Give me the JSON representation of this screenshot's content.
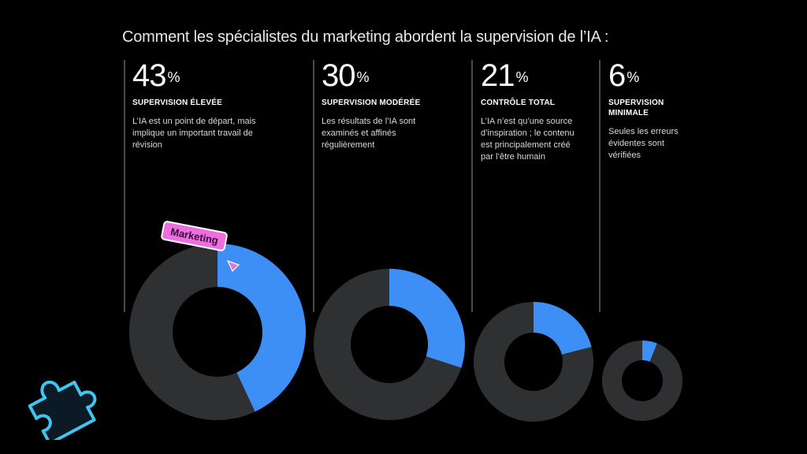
{
  "title": "Comment les spécialistes du marketing abordent la supervision de l’IA :",
  "tag": {
    "label": "Marketing"
  },
  "icons": {
    "puzzle": "puzzle-piece-icon",
    "arrow": "pointer-arrow-icon"
  },
  "colors": {
    "accent": "#3d8ef5",
    "remainder": "#2e3032",
    "tag": "#ec6ee0",
    "puzzle": "#3fc6f0"
  },
  "chart_data": {
    "type": "pie",
    "title": "Comment les spécialistes du marketing abordent la supervision de l’IA :",
    "unit": "%",
    "categories": [
      "SUPERVISION ÉLEVÉE",
      "SUPERVISION MODÉRÉE",
      "CONTRÔLE TOTAL",
      "SUPERVISION MINIMALE"
    ],
    "values": [
      43,
      30,
      21,
      6
    ],
    "descriptions": [
      "L’IA est un point de départ, mais implique un important travail de révision",
      "Les résultats de l’IA sont examinés et affinés régulièrement",
      "L’IA n’est qu’une source d’inspiration ; le contenu est principalement créé par l’être humain",
      "Seules les erreurs évidentes sont vérifiées"
    ],
    "percent_sign": "%"
  }
}
